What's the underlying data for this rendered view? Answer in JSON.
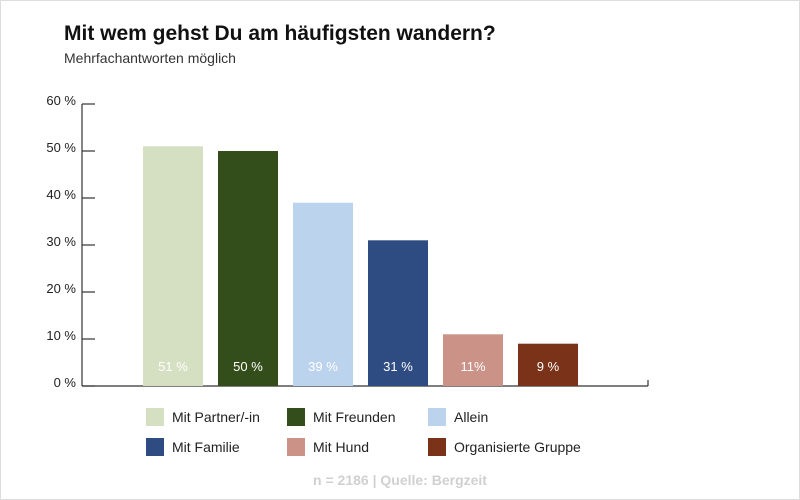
{
  "chart_data": {
    "type": "bar",
    "title": "Mit wem gehst Du am häufigsten wandern?",
    "subtitle": "Mehrfachantworten möglich",
    "categories": [
      "Mit Partner/-in",
      "Mit Freunden",
      "Allein",
      "Mit Familie",
      "Mit Hund",
      "Organisierte Gruppe"
    ],
    "values": [
      51,
      50,
      39,
      31,
      11,
      9
    ],
    "data_labels": [
      "51 %",
      "50 %",
      "39 %",
      "31 %",
      "11%",
      "9 %"
    ],
    "colors": [
      "#d5dfc1",
      "#334e1a",
      "#bcd3ee",
      "#2e4c82",
      "#cb9387",
      "#7a3318"
    ],
    "ylim": [
      0,
      60
    ],
    "yticks": [
      0,
      10,
      20,
      30,
      40,
      50,
      60
    ],
    "ytick_labels": [
      "0 %",
      "10 %",
      "20 %",
      "30 %",
      "40 %",
      "50 %",
      "60 %"
    ],
    "grid": false,
    "legend_position": "bottom",
    "source": "n = 2186 | Quelle: Bergzeit"
  }
}
